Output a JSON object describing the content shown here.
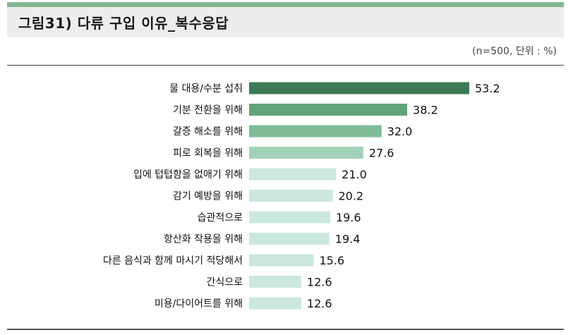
{
  "header": {
    "title": "그림31) 다류 구입 이유_복수응답",
    "note": "(n=500,  단위 : %)"
  },
  "colors": {
    "rule": "#84b693",
    "title_bg": "#ededed",
    "bar_scale": [
      "#3e7b55",
      "#61a47a",
      "#7ebd97",
      "#a1d2b7",
      "#cbe8dc"
    ]
  },
  "chart_data": {
    "type": "bar",
    "orientation": "horizontal",
    "categories": [
      "물 대용/수분 섭취",
      "기분 전환을 위해",
      "갈증 해소를 위해",
      "피로 회복을 위해",
      "입에 텁텁함을 없애기 위해",
      "감기 예방을 위해",
      "습관적으로",
      "항산화 작용을 위해",
      "다른 음식과 함께 마시기 적당해서",
      "간식으로",
      "미용/다이어트를 위해"
    ],
    "values": [
      53.2,
      38.2,
      32.0,
      27.6,
      21.0,
      20.2,
      19.6,
      19.4,
      15.6,
      12.6,
      12.6
    ],
    "value_labels": [
      "53.2",
      "38.2",
      "32.0",
      "27.6",
      "21.0",
      "20.2",
      "19.6",
      "19.4",
      "15.6",
      "12.6",
      "12.6"
    ],
    "xlim": [
      0,
      53.2
    ],
    "grid": false,
    "legend": "none"
  }
}
